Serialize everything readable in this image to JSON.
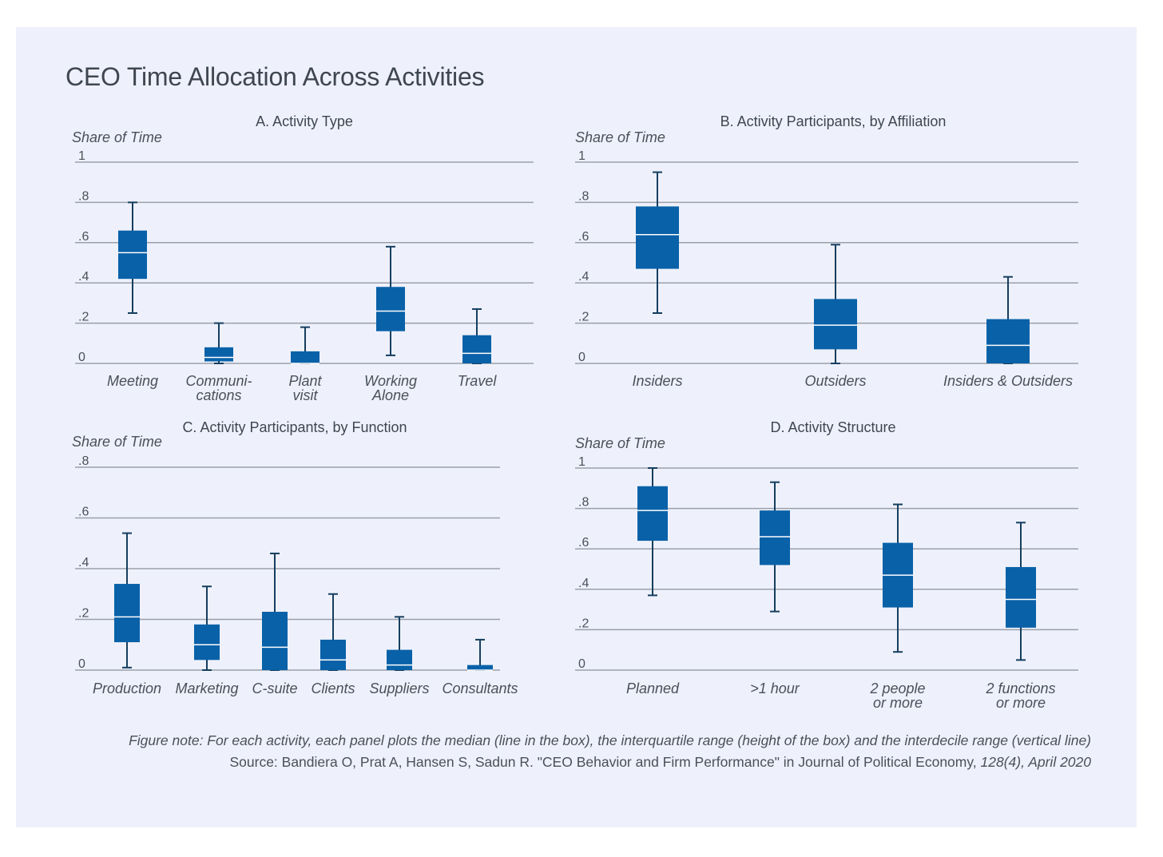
{
  "title": "CEO Time Allocation Across Activities",
  "colors": {
    "box": "#0961a8",
    "whisker": "#153e5f",
    "median": "#ffffff",
    "grid": "#9aa0aa",
    "background": "#eef1fb"
  },
  "chart_data": [
    {
      "type": "box",
      "title": "A. Activity Type",
      "ylabel": "Share of Time",
      "ylim": [
        0,
        1
      ],
      "yticks": [
        0,
        0.2,
        0.4,
        0.6,
        0.8,
        1
      ],
      "ytick_labels": [
        "0",
        ".2",
        ".4",
        ".6",
        ".8",
        "1"
      ],
      "categories": [
        [
          "Meeting"
        ],
        [
          "Communi-",
          "cations"
        ],
        [
          "Plant",
          "visit"
        ],
        [
          "Working",
          "Alone"
        ],
        [
          "Travel"
        ]
      ],
      "boxes": [
        {
          "p10": 0.25,
          "q1": 0.42,
          "median": 0.55,
          "q3": 0.66,
          "p90": 0.8
        },
        {
          "p10": 0.0,
          "q1": 0.01,
          "median": 0.03,
          "q3": 0.08,
          "p90": 0.2
        },
        {
          "p10": 0.0,
          "q1": 0.0,
          "median": 0.0,
          "q3": 0.06,
          "p90": 0.18
        },
        {
          "p10": 0.04,
          "q1": 0.16,
          "median": 0.26,
          "q3": 0.38,
          "p90": 0.58
        },
        {
          "p10": 0.0,
          "q1": 0.0,
          "median": 0.05,
          "q3": 0.14,
          "p90": 0.27
        }
      ]
    },
    {
      "type": "box",
      "title": "B. Activity Participants, by Affiliation",
      "ylabel": "Share of Time",
      "ylim": [
        0,
        1
      ],
      "yticks": [
        0,
        0.2,
        0.4,
        0.6,
        0.8,
        1
      ],
      "ytick_labels": [
        "0",
        ".2",
        ".4",
        ".6",
        ".8",
        "1"
      ],
      "categories": [
        [
          "Insiders"
        ],
        [
          "Outsiders"
        ],
        [
          "Insiders & Outsiders"
        ]
      ],
      "boxes": [
        {
          "p10": 0.25,
          "q1": 0.47,
          "median": 0.64,
          "q3": 0.78,
          "p90": 0.95
        },
        {
          "p10": 0.0,
          "q1": 0.07,
          "median": 0.19,
          "q3": 0.32,
          "p90": 0.59
        },
        {
          "p10": 0.0,
          "q1": 0.0,
          "median": 0.09,
          "q3": 0.22,
          "p90": 0.43
        }
      ]
    },
    {
      "type": "box",
      "title": "C. Activity Participants, by Function",
      "ylabel": "Share of Time",
      "ylim": [
        0,
        0.8
      ],
      "yticks": [
        0,
        0.2,
        0.4,
        0.6,
        0.8
      ],
      "ytick_labels": [
        "0",
        ".2",
        ".4",
        ".6",
        ".8"
      ],
      "categories": [
        [
          "Production"
        ],
        [
          "Marketing"
        ],
        [
          "C-suite"
        ],
        [
          "Clients"
        ],
        [
          "Suppliers"
        ],
        [
          "Consultants"
        ]
      ],
      "boxes": [
        {
          "p10": 0.01,
          "q1": 0.11,
          "median": 0.21,
          "q3": 0.34,
          "p90": 0.54
        },
        {
          "p10": 0.0,
          "q1": 0.04,
          "median": 0.1,
          "q3": 0.18,
          "p90": 0.33
        },
        {
          "p10": 0.0,
          "q1": 0.0,
          "median": 0.09,
          "q3": 0.23,
          "p90": 0.46
        },
        {
          "p10": 0.0,
          "q1": 0.0,
          "median": 0.04,
          "q3": 0.12,
          "p90": 0.3
        },
        {
          "p10": 0.0,
          "q1": 0.0,
          "median": 0.02,
          "q3": 0.08,
          "p90": 0.21
        },
        {
          "p10": 0.0,
          "q1": 0.0,
          "median": 0.0,
          "q3": 0.02,
          "p90": 0.12
        }
      ]
    },
    {
      "type": "box",
      "title": "D. Activity Structure",
      "ylabel": "Share of Time",
      "ylim": [
        0,
        1
      ],
      "yticks": [
        0,
        0.2,
        0.4,
        0.6,
        0.8,
        1
      ],
      "ytick_labels": [
        "0",
        ".2",
        ".4",
        ".6",
        ".8",
        "1"
      ],
      "categories": [
        [
          "Planned"
        ],
        [
          ">1 hour"
        ],
        [
          "2 people",
          "or more"
        ],
        [
          "2 functions",
          "or more"
        ]
      ],
      "boxes": [
        {
          "p10": 0.37,
          "q1": 0.64,
          "median": 0.79,
          "q3": 0.91,
          "p90": 1.0
        },
        {
          "p10": 0.29,
          "q1": 0.52,
          "median": 0.66,
          "q3": 0.79,
          "p90": 0.93
        },
        {
          "p10": 0.09,
          "q1": 0.31,
          "median": 0.47,
          "q3": 0.63,
          "p90": 0.82
        },
        {
          "p10": 0.05,
          "q1": 0.21,
          "median": 0.35,
          "q3": 0.51,
          "p90": 0.73
        }
      ]
    }
  ],
  "note": "Figure note: For each activity, each panel plots the median (line in the box), the interquartile range (height of the box) and the interdecile range (vertical line)",
  "source": {
    "prefix": "Source: Bandiera O, Prat A, Hansen S, Sadun R. \"CEO Behavior and Firm Performance\" in ",
    "journal": "Journal of Political Economy,",
    "suffix": " 128(4), April 2020"
  }
}
